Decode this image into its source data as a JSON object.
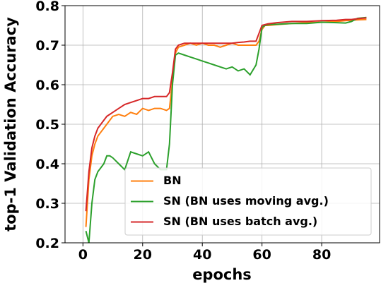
{
  "chart_data": {
    "type": "line",
    "xlabel": "epochs",
    "ylabel": "top-1 Validation Accuracy",
    "x": [
      1,
      2,
      3,
      4,
      5,
      6,
      7,
      8,
      9,
      10,
      12,
      14,
      16,
      18,
      20,
      22,
      24,
      26,
      28,
      29,
      30,
      31,
      32,
      34,
      36,
      38,
      40,
      42,
      44,
      46,
      48,
      50,
      52,
      54,
      56,
      58,
      59,
      60,
      61,
      62,
      65,
      70,
      75,
      80,
      85,
      88,
      90,
      92,
      95
    ],
    "series": [
      {
        "name": "BN",
        "color": "#ff7f0e",
        "values": [
          0.24,
          0.36,
          0.42,
          0.45,
          0.47,
          0.48,
          0.49,
          0.5,
          0.51,
          0.52,
          0.525,
          0.52,
          0.53,
          0.525,
          0.54,
          0.535,
          0.54,
          0.54,
          0.535,
          0.54,
          0.61,
          0.68,
          0.695,
          0.7,
          0.705,
          0.7,
          0.705,
          0.7,
          0.7,
          0.695,
          0.7,
          0.705,
          0.7,
          0.7,
          0.7,
          0.7,
          0.71,
          0.74,
          0.75,
          0.75,
          0.752,
          0.755,
          0.757,
          0.758,
          0.76,
          0.762,
          0.763,
          0.764,
          0.765
        ]
      },
      {
        "name": "SN (BN uses moving avg.)",
        "color": "#2ca02c",
        "values": [
          0.23,
          0.2,
          0.3,
          0.36,
          0.38,
          0.39,
          0.4,
          0.42,
          0.42,
          0.415,
          0.4,
          0.385,
          0.43,
          0.425,
          0.42,
          0.43,
          0.4,
          0.385,
          0.385,
          0.45,
          0.6,
          0.675,
          0.68,
          0.675,
          0.67,
          0.665,
          0.66,
          0.655,
          0.65,
          0.645,
          0.64,
          0.645,
          0.635,
          0.64,
          0.625,
          0.65,
          0.69,
          0.745,
          0.75,
          0.752,
          0.753,
          0.755,
          0.755,
          0.758,
          0.757,
          0.756,
          0.76,
          0.768,
          0.77
        ]
      },
      {
        "name": "SN (BN uses batch avg.)",
        "color": "#d62728",
        "values": [
          0.28,
          0.38,
          0.44,
          0.47,
          0.49,
          0.5,
          0.51,
          0.52,
          0.525,
          0.53,
          0.54,
          0.55,
          0.555,
          0.56,
          0.565,
          0.565,
          0.57,
          0.57,
          0.57,
          0.58,
          0.63,
          0.69,
          0.7,
          0.705,
          0.705,
          0.705,
          0.705,
          0.705,
          0.705,
          0.705,
          0.705,
          0.705,
          0.707,
          0.708,
          0.71,
          0.71,
          0.73,
          0.75,
          0.752,
          0.754,
          0.757,
          0.76,
          0.76,
          0.762,
          0.763,
          0.765,
          0.765,
          0.767,
          0.769
        ]
      }
    ],
    "xlim": [
      -6,
      99.4
    ],
    "ylim": [
      0.2,
      0.8
    ],
    "xticks": [
      0,
      20,
      40,
      60,
      80
    ],
    "yticks": [
      0.2,
      0.3,
      0.4,
      0.5,
      0.6,
      0.7,
      0.8
    ],
    "grid": true,
    "legend": "lower right"
  }
}
